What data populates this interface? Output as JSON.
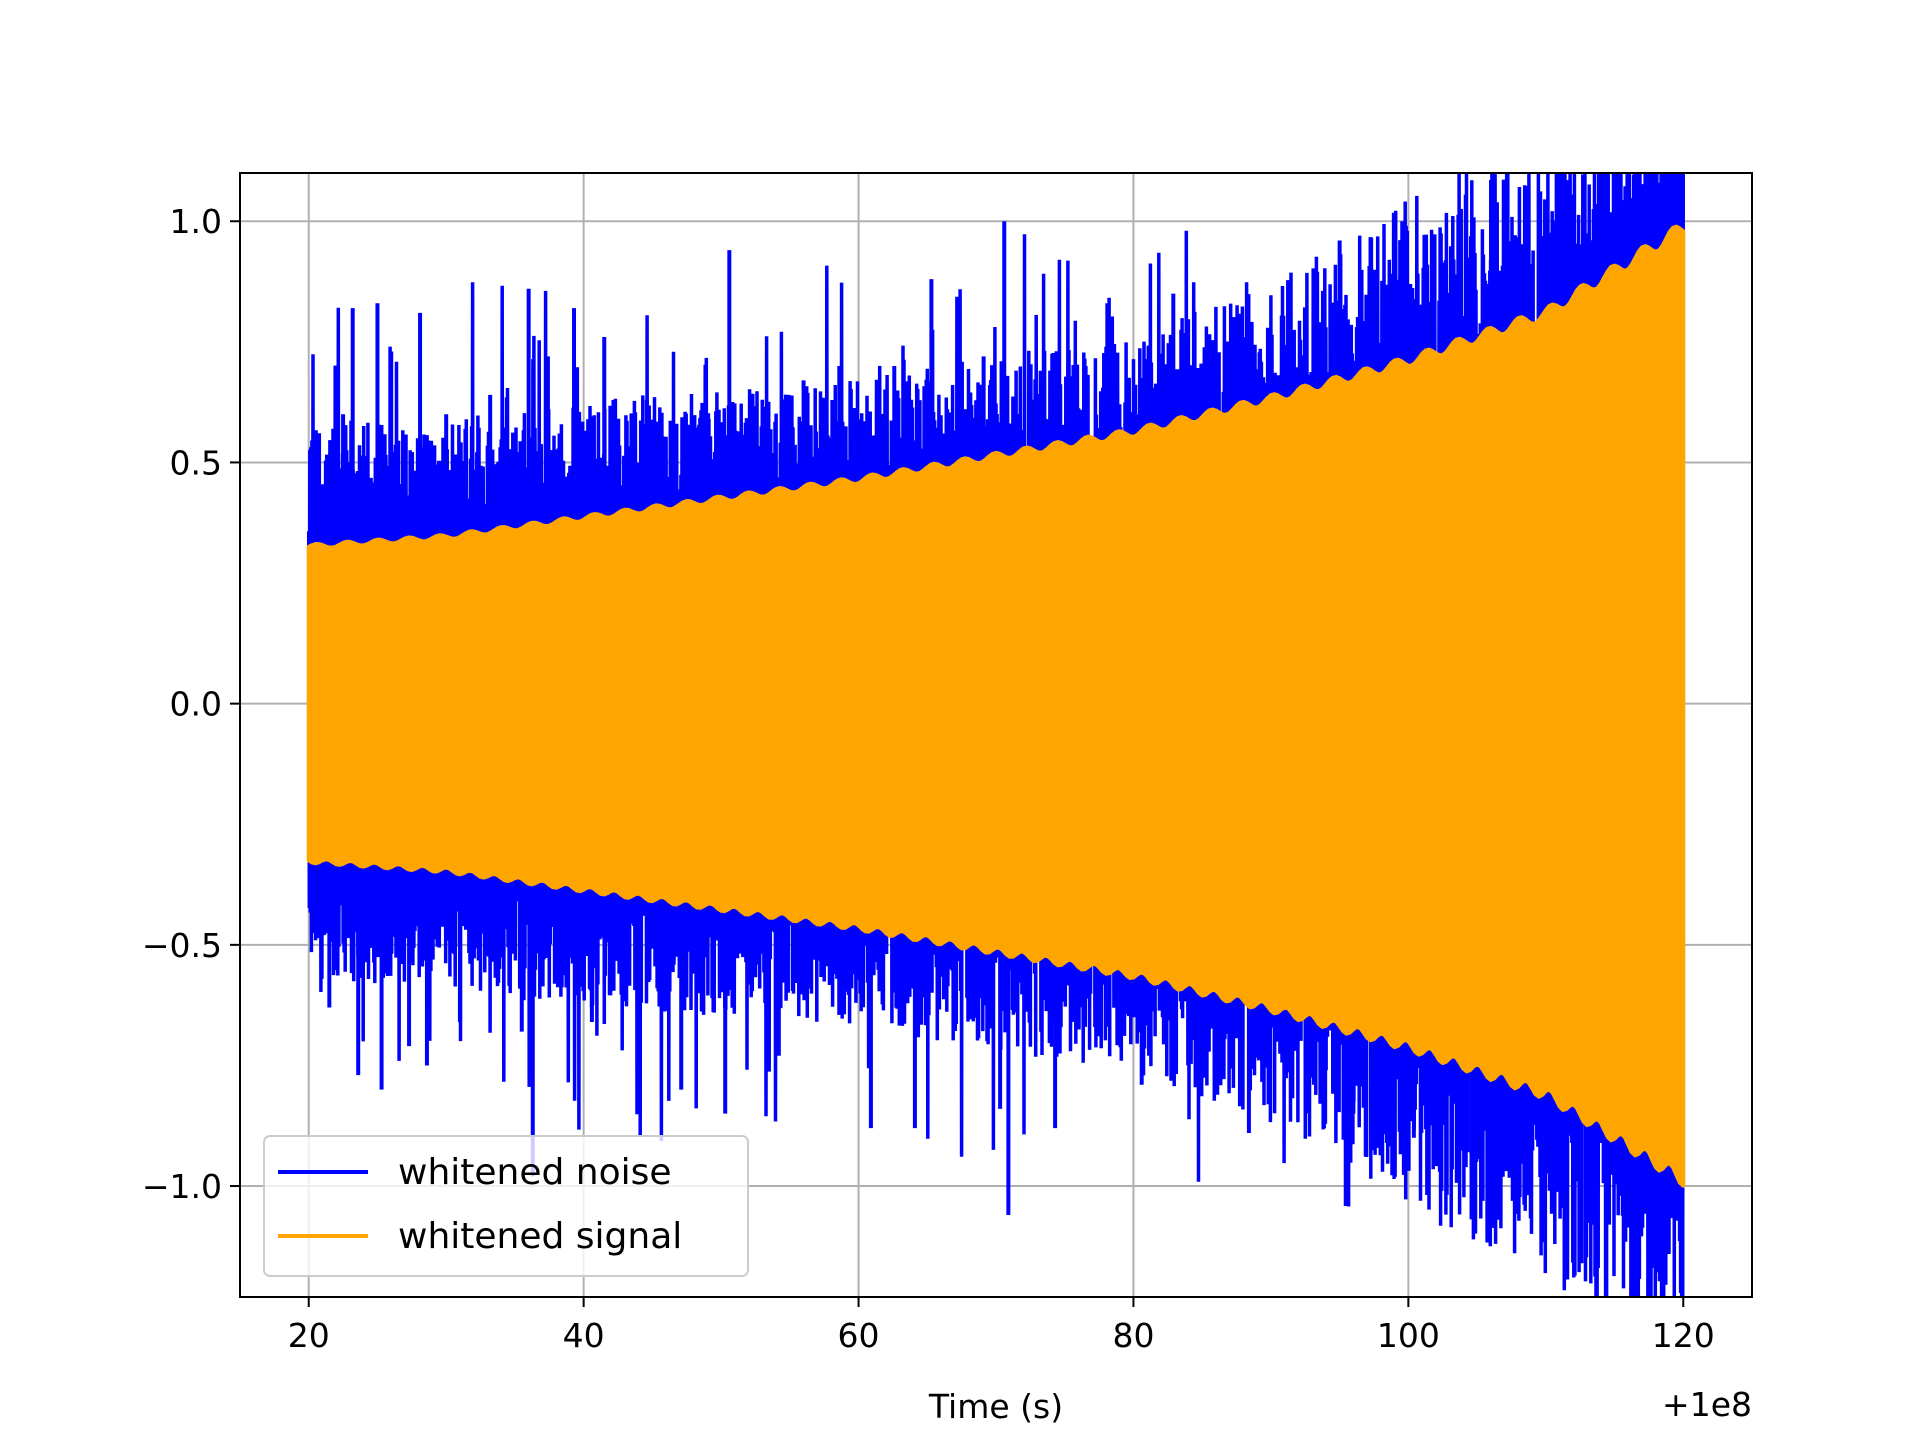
{
  "chart_data": {
    "type": "line",
    "title": "",
    "xlabel": "Time (s)",
    "ylabel": "",
    "x_offset_label": "+1e8",
    "xlim": [
      15,
      125
    ],
    "ylim": [
      -1.23,
      1.1
    ],
    "xticks": [
      20,
      40,
      60,
      80,
      100,
      120
    ],
    "xtick_labels": [
      "20",
      "40",
      "60",
      "80",
      "100",
      "120"
    ],
    "yticks": [
      -1.0,
      -0.5,
      0.0,
      0.5,
      1.0
    ],
    "ytick_labels": [
      "−1.0",
      "−0.5",
      "0.0",
      "0.5",
      "1.0"
    ],
    "grid": true,
    "legend": {
      "position": "lower-left"
    },
    "series": [
      {
        "name": "whitened noise",
        "color": "#0000ff",
        "x_range": [
          20,
          120
        ],
        "core_envelope": [
          [
            20,
            0.42
          ],
          [
            30,
            0.42
          ],
          [
            40,
            0.45
          ],
          [
            60,
            0.48
          ],
          [
            80,
            0.55
          ],
          [
            90,
            0.62
          ],
          [
            100,
            0.75
          ],
          [
            110,
            0.85
          ],
          [
            120,
            1.0
          ]
        ],
        "spikes": [
          [
            20.5,
            0.55
          ],
          [
            21.5,
            -0.63
          ],
          [
            22.5,
            0.6
          ],
          [
            23.2,
            0.82
          ],
          [
            23.6,
            -0.77
          ],
          [
            25.0,
            0.83
          ],
          [
            25.3,
            -0.8
          ],
          [
            26.0,
            0.73
          ],
          [
            27.3,
            -0.71
          ],
          [
            28.1,
            0.81
          ],
          [
            28.6,
            -0.75
          ],
          [
            30.0,
            0.6
          ],
          [
            31.0,
            -0.66
          ],
          [
            33.2,
            0.64
          ],
          [
            35.5,
            -0.68
          ],
          [
            36.0,
            0.86
          ],
          [
            36.3,
            -0.98
          ],
          [
            37.4,
            0.72
          ],
          [
            39.3,
            0.82
          ],
          [
            40.6,
            -0.66
          ],
          [
            41.5,
            0.76
          ],
          [
            44.6,
            0.63
          ],
          [
            47.1,
            -0.8
          ],
          [
            49.1,
            0.59
          ],
          [
            50.6,
            0.94
          ],
          [
            50.3,
            -0.85
          ],
          [
            54.2,
            -0.73
          ],
          [
            56.0,
            0.67
          ],
          [
            58.6,
            0.7
          ],
          [
            60.9,
            -0.88
          ],
          [
            62.6,
            0.7
          ],
          [
            64.1,
            -0.88
          ],
          [
            65.3,
            0.88
          ],
          [
            69.1,
            0.72
          ],
          [
            70.3,
            -0.84
          ],
          [
            70.6,
            1.0
          ],
          [
            70.9,
            -1.06
          ],
          [
            72.7,
            0.63
          ],
          [
            74.3,
            -0.88
          ],
          [
            75.9,
            0.6
          ],
          [
            78.1,
            0.83
          ],
          [
            80.6,
            -0.79
          ],
          [
            82.9,
            0.85
          ],
          [
            84.5,
            0.65
          ],
          [
            87.0,
            0.59
          ],
          [
            88.4,
            -0.89
          ],
          [
            92.3,
            0.57
          ],
          [
            94.0,
            -0.76
          ],
          [
            95.0,
            0.96
          ],
          [
            96.0,
            -0.85
          ],
          [
            98.3,
            0.7
          ],
          [
            100.4,
            -0.9
          ],
          [
            102.4,
            0.77
          ],
          [
            104.3,
            -0.93
          ],
          [
            106.0,
            0.92
          ],
          [
            108.0,
            -0.88
          ],
          [
            110.3,
            -0.94
          ],
          [
            110.9,
            0.96
          ],
          [
            112.0,
            0.95
          ],
          [
            112.6,
            -1.16
          ],
          [
            113.7,
            -0.9
          ],
          [
            114.6,
            -1.08
          ],
          [
            116.0,
            0.9
          ]
        ]
      },
      {
        "name": "whitened signal",
        "color": "#ffa500",
        "x_range": [
          20,
          120
        ],
        "amplitude_envelope": [
          [
            20,
            0.33
          ],
          [
            30,
            0.35
          ],
          [
            40,
            0.39
          ],
          [
            50,
            0.43
          ],
          [
            60,
            0.47
          ],
          [
            70,
            0.52
          ],
          [
            80,
            0.57
          ],
          [
            90,
            0.64
          ],
          [
            100,
            0.72
          ],
          [
            110,
            0.82
          ],
          [
            120,
            1.0
          ]
        ]
      }
    ]
  }
}
